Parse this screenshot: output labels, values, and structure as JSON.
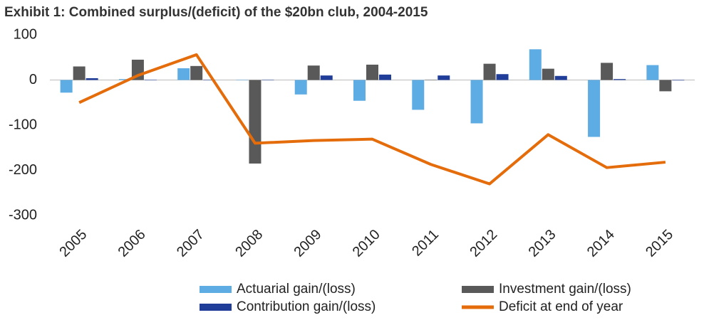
{
  "chart_data": {
    "type": "bar",
    "title": "Exhibit 1: Combined surplus/(deficit) of the $20bn club, 2004-2015",
    "categories": [
      "2005",
      "2006",
      "2007",
      "2008",
      "2009",
      "2010",
      "2011",
      "2012",
      "2013",
      "2014",
      "2015"
    ],
    "series": [
      {
        "name": "Actuarial gain/(loss)",
        "color": "#5dace4",
        "values": [
          -28,
          2,
          26,
          0,
          -32,
          -46,
          -66,
          -96,
          68,
          -126,
          33
        ]
      },
      {
        "name": "Investment gain/(loss)",
        "color": "#595959",
        "values": [
          30,
          45,
          31,
          -185,
          32,
          34,
          0,
          36,
          25,
          38,
          -25
        ]
      },
      {
        "name": "Contribution gain/(loss)",
        "color": "#1f3d99",
        "values": [
          4,
          0,
          0,
          0,
          10,
          12,
          10,
          13,
          9,
          2,
          -1
        ]
      },
      {
        "name": "Deficit at end of year",
        "color": "#e46c0a",
        "type": "line",
        "values": [
          -50,
          10,
          56,
          -140,
          -134,
          -131,
          -187,
          -230,
          -121,
          -194,
          -182
        ]
      }
    ],
    "ylim": [
      -300,
      100
    ],
    "yticks": [
      -300,
      -200,
      -100,
      0,
      100
    ],
    "grid": false
  }
}
